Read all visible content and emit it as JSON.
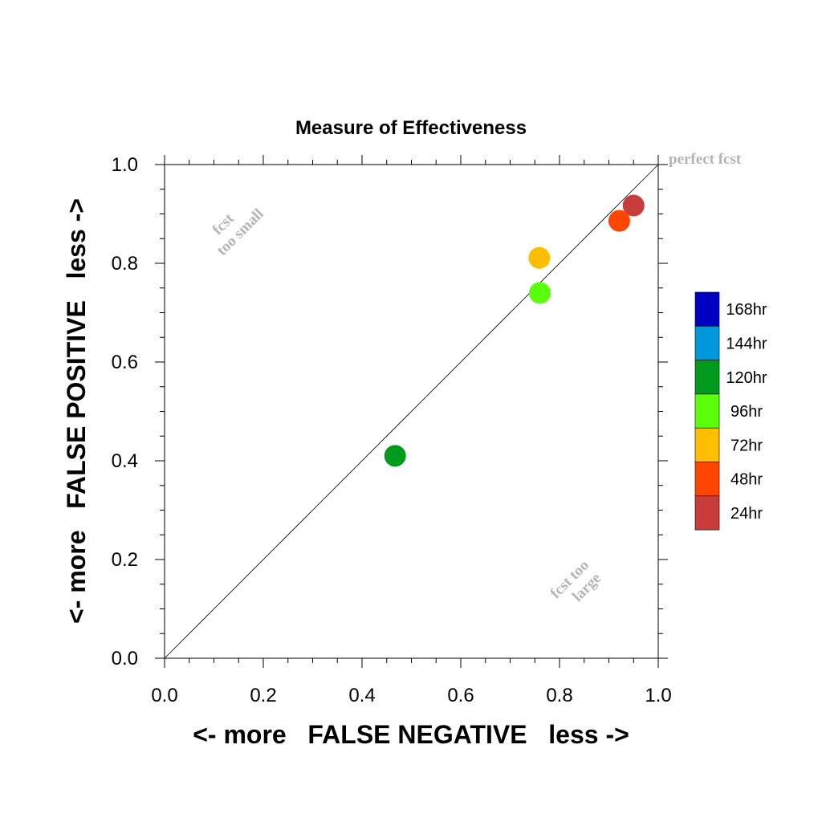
{
  "chart_data": {
    "type": "scatter",
    "title": "Measure of Effectiveness",
    "xlabel": "<- more   FALSE NEGATIVE   less ->",
    "ylabel": "<- more   FALSE POSITIVE   less ->",
    "xlim": [
      0.0,
      1.0
    ],
    "ylim": [
      0.0,
      1.0
    ],
    "x_tick_labels": [
      "0.0",
      "0.2",
      "0.4",
      "0.6",
      "0.8",
      "1.0"
    ],
    "y_tick_labels": [
      "0.0",
      "0.2",
      "0.4",
      "0.6",
      "0.8",
      "1.0"
    ],
    "x_ticks": [
      0.0,
      0.2,
      0.4,
      0.6,
      0.8,
      1.0
    ],
    "y_ticks": [
      0.0,
      0.2,
      0.4,
      0.6,
      0.8,
      1.0
    ],
    "grid": false,
    "reference_line": "diagonal",
    "annotations": {
      "perfect": "perfect fcst",
      "small_line1": "fcst",
      "small_line2": "too small",
      "large_line1": "fcst too",
      "large_line2": "large"
    },
    "legend": [
      {
        "label": "168hr",
        "color": "#0000c4"
      },
      {
        "label": "144hr",
        "color": "#0098dc"
      },
      {
        "label": "120hr",
        "color": "#009a1c"
      },
      {
        "label": "96hr",
        "color": "#5aff0a"
      },
      {
        "label": "72hr",
        "color": "#ffbe00"
      },
      {
        "label": "48hr",
        "color": "#ff4600"
      },
      {
        "label": "24hr",
        "color": "#c83c3c"
      }
    ],
    "legend_position": "right",
    "points": [
      {
        "series": "24hr",
        "x": 0.95,
        "y": 0.917,
        "color": "#c83c3c"
      },
      {
        "series": "48hr",
        "x": 0.921,
        "y": 0.886,
        "color": "#ff4600"
      },
      {
        "series": "72hr",
        "x": 0.759,
        "y": 0.811,
        "color": "#ffbe00"
      },
      {
        "series": "96hr",
        "x": 0.76,
        "y": 0.74,
        "color": "#5aff0a"
      },
      {
        "series": "120hr",
        "x": 0.467,
        "y": 0.41,
        "color": "#009a1c"
      }
    ]
  }
}
